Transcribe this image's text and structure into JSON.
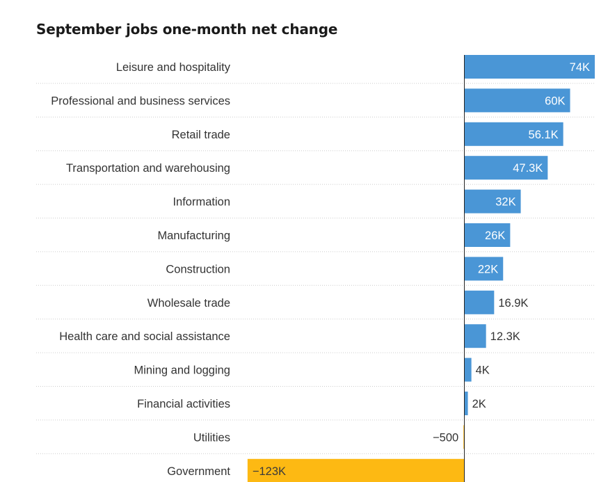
{
  "chart_data": {
    "type": "bar",
    "orientation": "horizontal",
    "title": "September jobs one-month net change",
    "xlabel": "",
    "ylabel": "",
    "grid": "dotted row separators",
    "categories": [
      "Leisure and hospitality",
      "Professional and business services",
      "Retail trade",
      "Transportation and warehousing",
      "Information",
      "Manufacturing",
      "Construction",
      "Wholesale trade",
      "Health care and social assistance",
      "Mining and logging",
      "Financial activities",
      "Utilities",
      "Government"
    ],
    "values": [
      74000,
      60000,
      56100,
      47300,
      32000,
      26000,
      22000,
      16900,
      12300,
      4000,
      2000,
      -500,
      -123000
    ],
    "value_labels": [
      "74K",
      "60K",
      "56.1K",
      "47.3K",
      "32K",
      "26K",
      "22K",
      "16.9K",
      "12.3K",
      "4K",
      "2K",
      "−500",
      "−123K"
    ],
    "xlim": [
      -123000,
      74000
    ],
    "colors": {
      "positive": "#4a96d6",
      "negative": "#fdb913",
      "separator": "#cccccc",
      "axis": "#222222"
    }
  }
}
